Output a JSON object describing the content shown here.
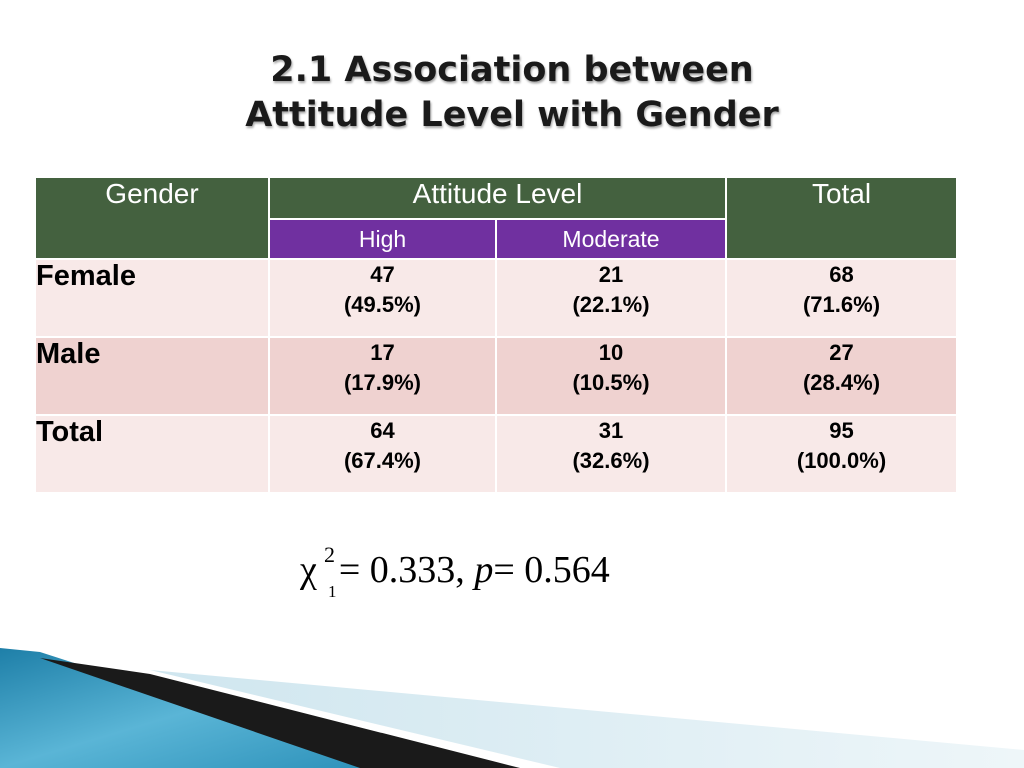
{
  "title": {
    "line1": "2.1 Association between",
    "line2": "Attitude Level with Gender"
  },
  "table": {
    "header": {
      "gender": "Gender",
      "attitude_level": "Attitude Level",
      "total": "Total",
      "sub_high": "High",
      "sub_moderate": "Moderate"
    },
    "rows": [
      {
        "label": "Female",
        "high": {
          "count": "47",
          "pct": "(49.5%)"
        },
        "moderate": {
          "count": "21",
          "pct": "(22.1%)"
        },
        "total": {
          "count": "68",
          "pct": "(71.6%)"
        }
      },
      {
        "label": "Male",
        "high": {
          "count": "17",
          "pct": "(17.9%)"
        },
        "moderate": {
          "count": "10",
          "pct": "(10.5%)"
        },
        "total": {
          "count": "27",
          "pct": "(28.4%)"
        }
      },
      {
        "label": "Total",
        "high": {
          "count": "64",
          "pct": "(67.4%)"
        },
        "moderate": {
          "count": "31",
          "pct": "(32.6%)"
        },
        "total": {
          "count": "95",
          "pct": "(100.0%)"
        }
      }
    ]
  },
  "statistic": {
    "symbol": "χ",
    "superscript": "2",
    "subscript": "1",
    "value_text": "= 0.333,",
    "p_symbol": "p",
    "p_value_text": "= 0.564"
  },
  "colors": {
    "header_green": "#44613f",
    "header_purple": "#7030a0",
    "row_light": "#f8e9e8",
    "row_dark": "#efd2d0"
  }
}
